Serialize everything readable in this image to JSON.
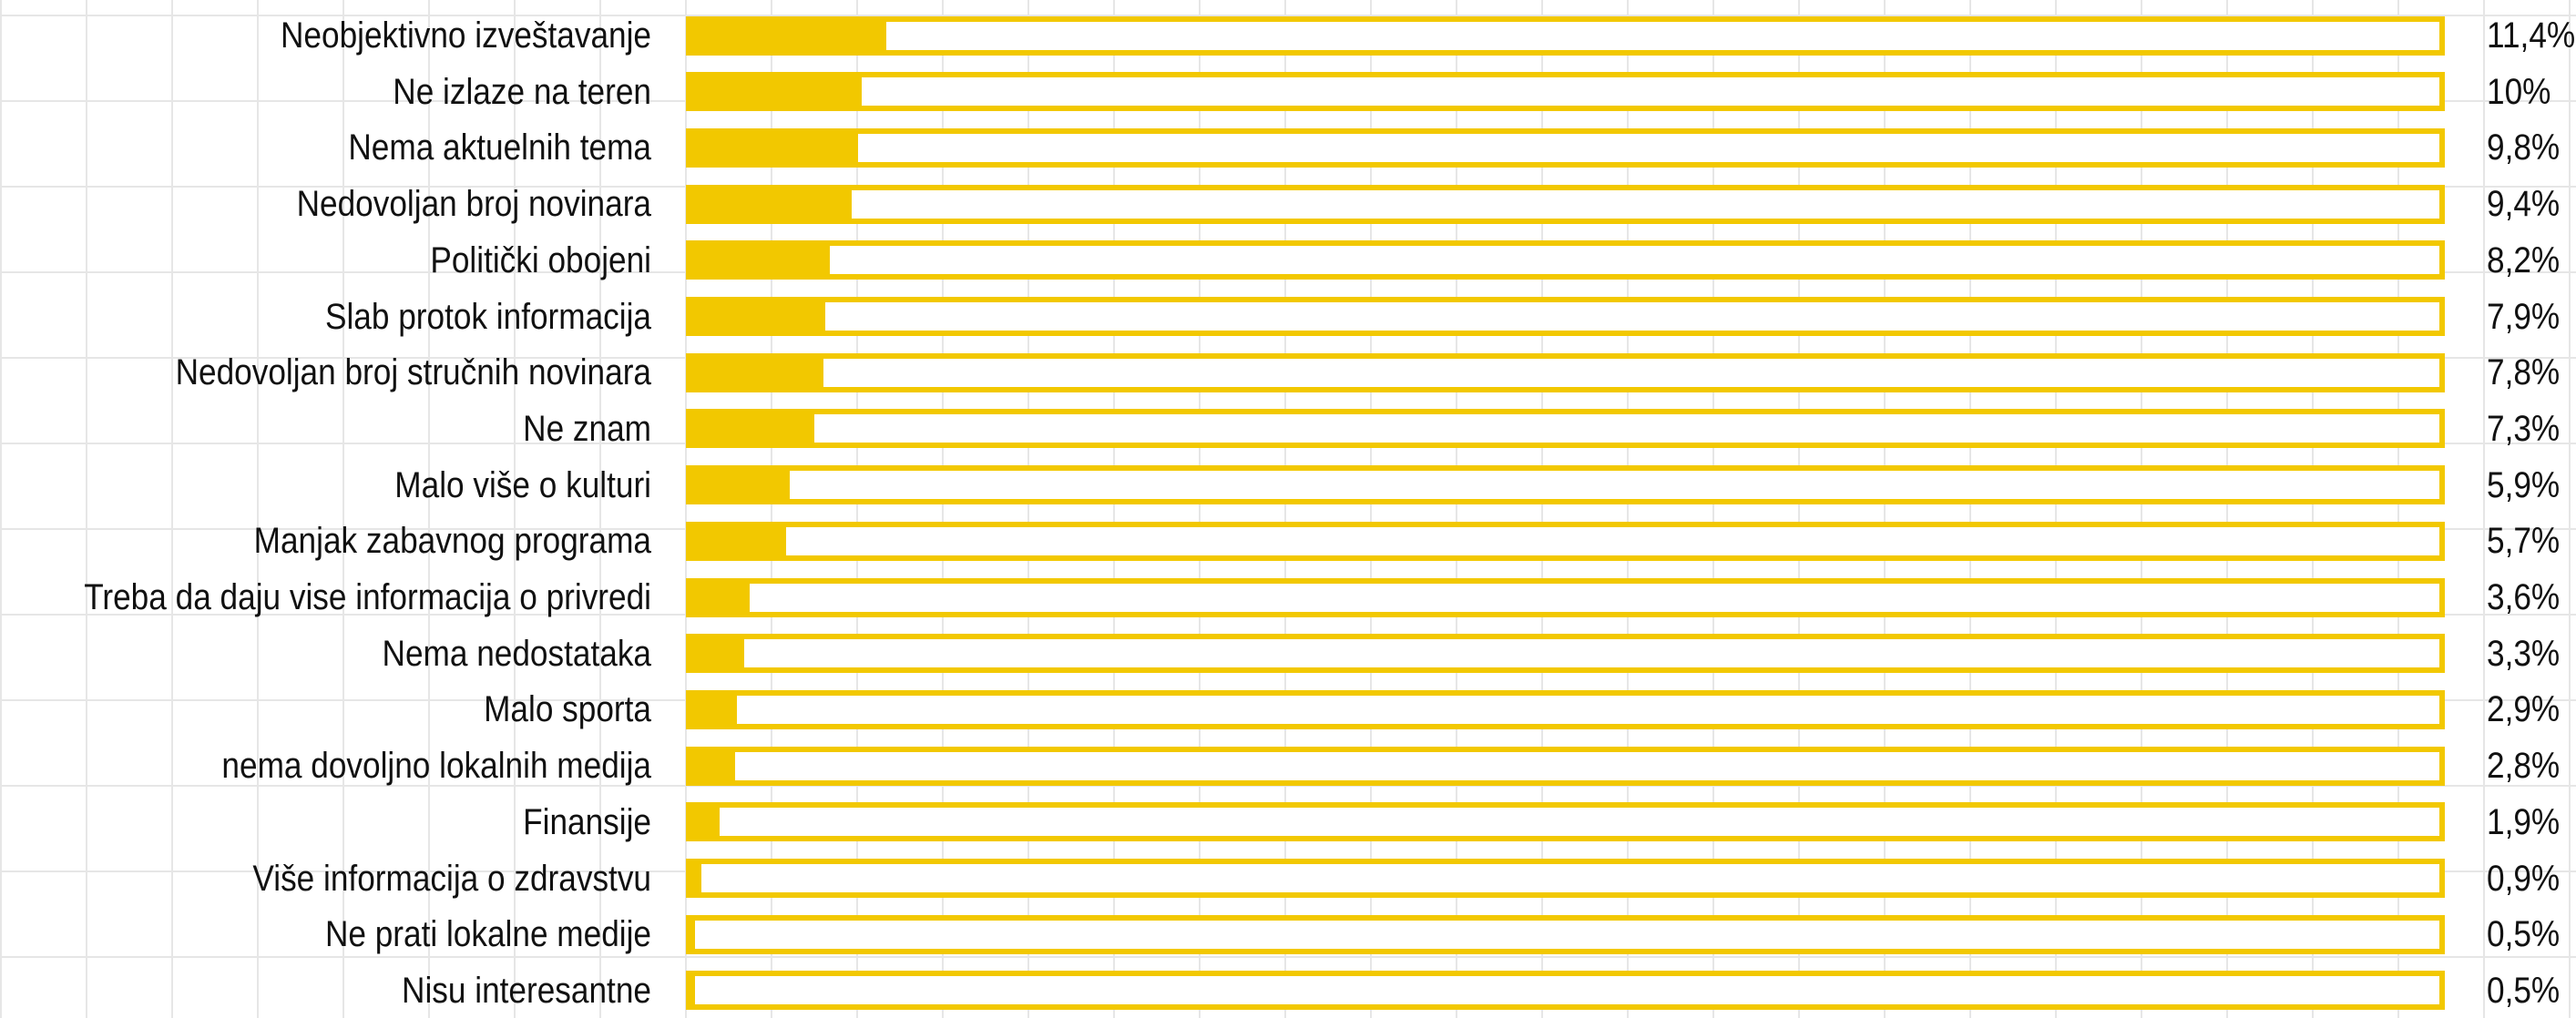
{
  "chart_data": {
    "type": "bar",
    "orientation": "horizontal",
    "categories": [
      "Neobjektivno izveštavanje",
      "Ne izlaze na teren",
      "Nema aktuelnih tema",
      "Nedovoljan broj novinara",
      "Politički obojeni",
      "Slab protok informacija",
      "Nedovoljan broj stručnih novinara",
      "Ne znam",
      "Malo više o kulturi",
      "Manjak zabavnog programa",
      "Treba da daju vise informacija o privredi",
      "Nema nedostataka",
      "Malo sporta",
      "nema dovoljno lokalnih medija",
      "Finansije",
      "Više informacija o zdravstvu",
      "Ne prati lokalne medije",
      "Nisu interesantne"
    ],
    "values": [
      11.4,
      10,
      9.8,
      9.4,
      8.2,
      7.9,
      7.8,
      7.3,
      5.9,
      5.7,
      3.6,
      3.3,
      2.9,
      2.8,
      1.9,
      0.9,
      0.5,
      0.5
    ],
    "value_labels": [
      "11,4%",
      "10%",
      "9,8%",
      "9,4%",
      "8,2%",
      "7,9%",
      "7,8%",
      "7,3%",
      "5,9%",
      "5,7%",
      "3,6%",
      "3,3%",
      "2,9%",
      "2,8%",
      "1,9%",
      "0,9%",
      "0,5%",
      "0,5%"
    ],
    "xlim": [
      0,
      100
    ],
    "grid": true,
    "colors": {
      "bar": "#f2c800",
      "track_border": "#f2c800",
      "text": "#111111",
      "grid": "#e6e6e6"
    }
  }
}
